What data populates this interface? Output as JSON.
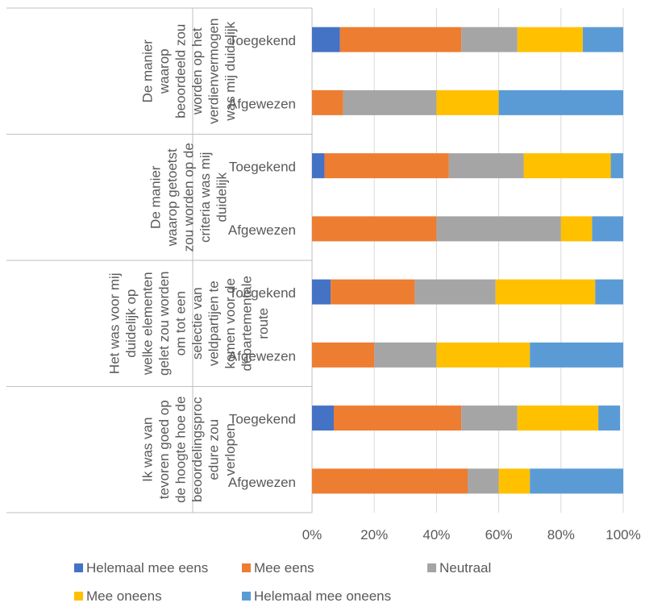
{
  "chart_data": {
    "type": "bar",
    "orientation": "horizontal",
    "stacked": "percent",
    "title": "",
    "xlabel": "",
    "ylabel": "",
    "xlim": [
      0,
      100
    ],
    "x_ticks": [
      "0%",
      "20%",
      "40%",
      "60%",
      "80%",
      "100%"
    ],
    "legend_position": "bottom",
    "grid": true,
    "series": [
      {
        "name": "Helemaal mee eens",
        "color": "#4472C4"
      },
      {
        "name": "Mee eens",
        "color": "#ED7D31"
      },
      {
        "name": "Neutraal",
        "color": "#A5A5A5"
      },
      {
        "name": "Mee oneens",
        "color": "#FFC000"
      },
      {
        "name": "Helemaal mee oneens",
        "color": "#5B9BD5"
      }
    ],
    "groups": [
      {
        "label_lines": [
          "De manier",
          "waarop",
          "beoordeeld zou",
          "worden op het",
          "verdienvermogen",
          "was mij duidelijk"
        ],
        "bars": [
          {
            "category": "Toegekend",
            "values": [
              9,
              39,
              18,
              21,
              13
            ]
          },
          {
            "category": "Afgewezen",
            "values": [
              0,
              10,
              30,
              20,
              40
            ]
          }
        ]
      },
      {
        "label_lines": [
          "De manier",
          "waarop getoetst",
          "zou worden op de",
          "criteria was mij",
          "duidelijk"
        ],
        "bars": [
          {
            "category": "Toegekend",
            "values": [
              4,
              40,
              24,
              28,
              4
            ]
          },
          {
            "category": "Afgewezen",
            "values": [
              0,
              40,
              40,
              10,
              10
            ]
          }
        ]
      },
      {
        "label_lines": [
          "Het was voor mij",
          "duidelijk op",
          "welke elementen",
          "gelet zou worden",
          "om tot een",
          "selectie van",
          "veldpartijen te",
          "komen voor de",
          "departementale",
          "route"
        ],
        "bars": [
          {
            "category": "Toegekend",
            "values": [
              6,
              27,
              26,
              32,
              9
            ]
          },
          {
            "category": "Afgewezen",
            "values": [
              0,
              20,
              20,
              30,
              30
            ]
          }
        ]
      },
      {
        "label_lines": [
          "Ik was van",
          "tevoren goed op",
          "de hoogte hoe de",
          "beoordelingsproc",
          "edure zou",
          "verlopen"
        ],
        "bars": [
          {
            "category": "Toegekend",
            "values": [
              7,
              41,
              18,
              26,
              7
            ]
          },
          {
            "category": "Afgewezen",
            "values": [
              0,
              50,
              10,
              10,
              30
            ]
          }
        ]
      }
    ]
  }
}
